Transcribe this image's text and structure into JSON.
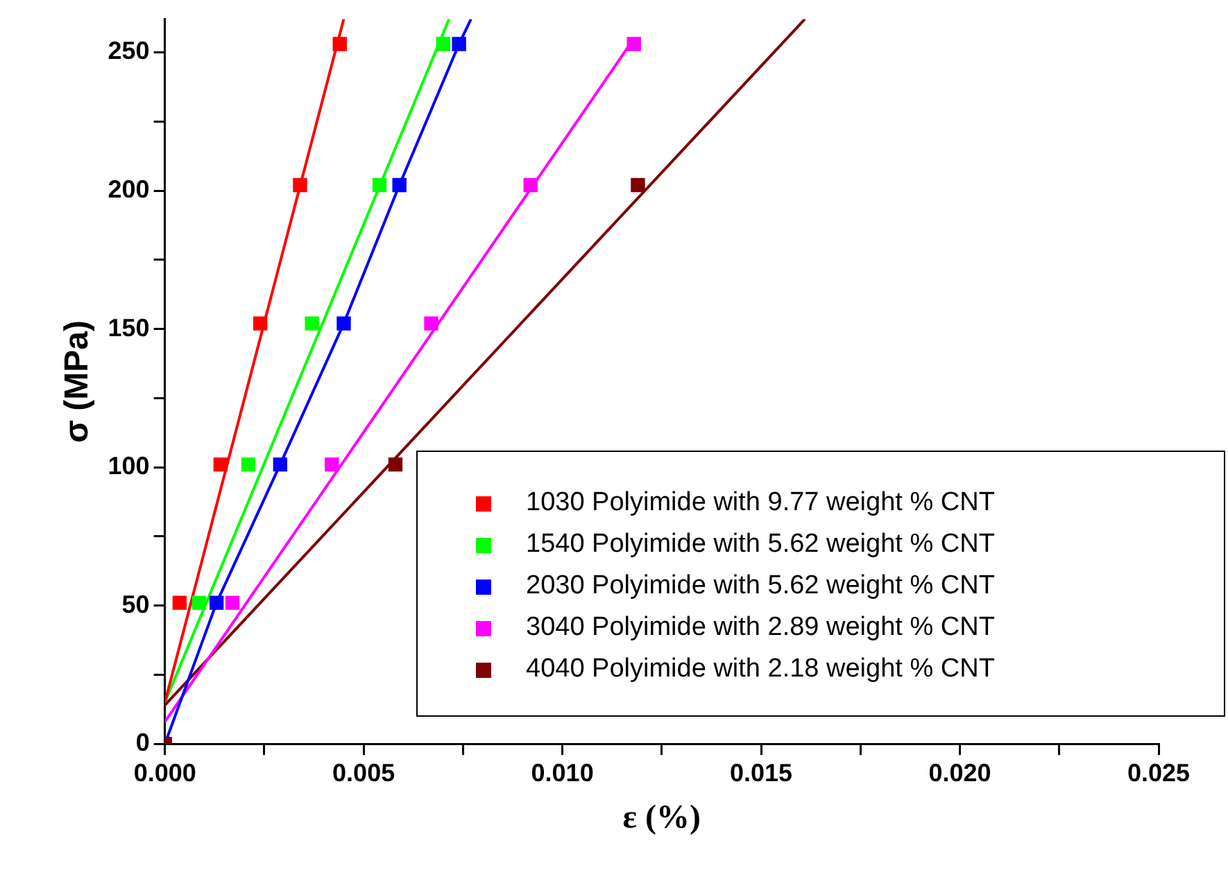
{
  "chart_data": {
    "type": "scatter",
    "xlabel": "ε (%)",
    "ylabel": "σ (MPa)",
    "xlim": [
      0,
      0.025
    ],
    "ylim": [
      0,
      262
    ],
    "xticks": [
      {
        "value": 0,
        "label": "0.000"
      },
      {
        "value": 0.0025,
        "label": null
      },
      0.005,
      {
        "value": 0.0075,
        "label": null
      },
      {
        "value": 0.01,
        "label": "0.010"
      },
      {
        "value": 0.0125,
        "label": null
      },
      0.015,
      {
        "value": 0.0175,
        "label": null
      },
      {
        "value": 0.02,
        "label": "0.020"
      },
      {
        "value": 0.0225,
        "label": null
      },
      0.025
    ],
    "yticks": [
      0,
      {
        "value": 25,
        "label": null
      },
      50,
      {
        "value": 75,
        "label": null
      },
      100,
      {
        "value": 125,
        "label": null
      },
      150,
      {
        "value": 175,
        "label": null
      },
      200,
      {
        "value": 225,
        "label": null
      },
      250
    ],
    "grid": false,
    "legend": "bottom right",
    "marker": "square",
    "series": [
      {
        "type": "line",
        "color": "#ff0000",
        "marker": "none",
        "x": [
          0,
          0.0045
        ],
        "values": [
          15,
          262
        ]
      },
      {
        "type": "line",
        "color": "#00ff00",
        "marker": "none",
        "x": [
          0,
          0.00715
        ],
        "values": [
          15,
          262
        ]
      },
      {
        "type": "line",
        "color": "#0000ff",
        "marker": "none",
        "x": [
          0,
          0.0013,
          0.0029,
          0.0045,
          0.0059,
          0.0074,
          0.0077
        ],
        "values": [
          0,
          51,
          101,
          152,
          202,
          253,
          262
        ]
      },
      {
        "type": "line",
        "color": "#ff00ff",
        "marker": "none",
        "x": [
          0,
          0.0118
        ],
        "values": [
          8,
          255
        ]
      },
      {
        "type": "line",
        "color": "#800000",
        "marker": "none",
        "x": [
          0,
          0.0161
        ],
        "values": [
          14,
          262
        ]
      },
      {
        "name": "1030 Polyimide with 9.77 weight % CNT",
        "color": "#ff0000",
        "x": [
          0.00037,
          0.0014,
          0.0024,
          0.0034,
          0.0044
        ],
        "values": [
          51,
          101,
          152,
          202,
          253
        ]
      },
      {
        "name": "1540 Polyimide with 5.62 weight % CNT",
        "color": "#00ff00",
        "x": [
          0.00086,
          0.0021,
          0.0037,
          0.0054,
          0.007
        ],
        "values": [
          51,
          101,
          152,
          202,
          253
        ]
      },
      {
        "name": "2030 Polyimide with 5.62 weight % CNT",
        "color": "#0000ff",
        "x": [
          0.0013,
          0.0029,
          0.0045,
          0.0059,
          0.0074
        ],
        "values": [
          51,
          101,
          152,
          202,
          253
        ]
      },
      {
        "name": "3040 Polyimide with 2.89 weight % CNT",
        "color": "#ff00ff",
        "x": [
          0.0017,
          0.0042,
          0.0067,
          0.0092,
          0.0118
        ],
        "values": [
          51,
          101,
          152,
          202,
          253
        ]
      },
      {
        "name": "4040 Polyimide with 2.18 weight % CNT",
        "color": "#800000",
        "x": [
          0,
          0.0058,
          0.0119
        ],
        "values": [
          0,
          101,
          202
        ]
      }
    ]
  }
}
